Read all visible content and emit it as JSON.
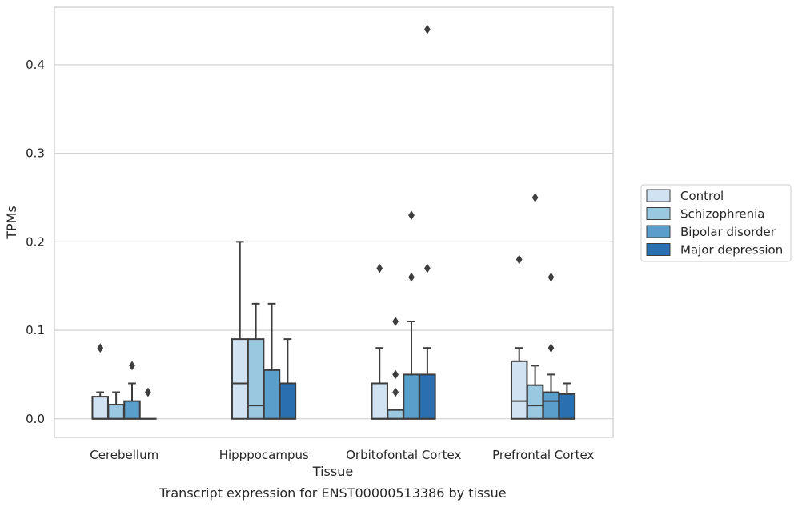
{
  "chart_data": {
    "type": "box",
    "title": "",
    "caption": "Transcript expression for ENST00000513386 by tissue",
    "xlabel": "Tissue",
    "ylabel": "TPMs",
    "ylim": [
      -0.021,
      0.465
    ],
    "yticks": [
      0.0,
      0.1,
      0.2,
      0.3,
      0.4
    ],
    "ytick_labels": [
      "0.0",
      "0.1",
      "0.2",
      "0.3",
      "0.4"
    ],
    "grid": "horizontal",
    "legend_position": "right",
    "categories": [
      "Cerebellum",
      "Hipppocampus",
      "Orbitofontal Cortex",
      "Prefrontal Cortex"
    ],
    "colors": {
      "Control": "#d1e2f2",
      "Schizophrenia": "#9ac8e0",
      "Bipolar disorder": "#5a9fcb",
      "Major depression": "#2a6faf"
    },
    "series": [
      {
        "name": "Control",
        "boxes": [
          {
            "q1": 0.0,
            "median": 0.0,
            "q3": 0.025,
            "whisker_low": 0.0,
            "whisker_high": 0.03,
            "outliers": [
              0.08
            ]
          },
          {
            "q1": 0.0,
            "median": 0.04,
            "q3": 0.09,
            "whisker_low": 0.0,
            "whisker_high": 0.2,
            "outliers": []
          },
          {
            "q1": 0.0,
            "median": 0.0,
            "q3": 0.04,
            "whisker_low": 0.0,
            "whisker_high": 0.08,
            "outliers": [
              0.17
            ]
          },
          {
            "q1": 0.0,
            "median": 0.02,
            "q3": 0.065,
            "whisker_low": 0.0,
            "whisker_high": 0.08,
            "outliers": [
              0.18
            ]
          }
        ]
      },
      {
        "name": "Schizophrenia",
        "boxes": [
          {
            "q1": 0.0,
            "median": 0.0,
            "q3": 0.016,
            "whisker_low": 0.0,
            "whisker_high": 0.03,
            "outliers": []
          },
          {
            "q1": 0.0,
            "median": 0.015,
            "q3": 0.09,
            "whisker_low": 0.0,
            "whisker_high": 0.13,
            "outliers": []
          },
          {
            "q1": 0.0,
            "median": 0.0,
            "q3": 0.01,
            "whisker_low": 0.0,
            "whisker_high": 0.01,
            "outliers": [
              0.03,
              0.05,
              0.11
            ]
          },
          {
            "q1": 0.0,
            "median": 0.015,
            "q3": 0.038,
            "whisker_low": 0.0,
            "whisker_high": 0.06,
            "outliers": [
              0.25
            ]
          }
        ]
      },
      {
        "name": "Bipolar disorder",
        "boxes": [
          {
            "q1": 0.0,
            "median": 0.0,
            "q3": 0.02,
            "whisker_low": 0.0,
            "whisker_high": 0.04,
            "outliers": [
              0.06
            ]
          },
          {
            "q1": 0.0,
            "median": 0.0,
            "q3": 0.055,
            "whisker_low": 0.0,
            "whisker_high": 0.13,
            "outliers": []
          },
          {
            "q1": 0.0,
            "median": 0.0,
            "q3": 0.05,
            "whisker_low": 0.0,
            "whisker_high": 0.11,
            "outliers": [
              0.16,
              0.23
            ]
          },
          {
            "q1": 0.0,
            "median": 0.02,
            "q3": 0.03,
            "whisker_low": 0.0,
            "whisker_high": 0.05,
            "outliers": [
              0.08,
              0.16
            ]
          }
        ]
      },
      {
        "name": "Major depression",
        "boxes": [
          {
            "q1": 0.0,
            "median": 0.0,
            "q3": 0.0,
            "whisker_low": 0.0,
            "whisker_high": 0.0,
            "outliers": [
              0.03
            ]
          },
          {
            "q1": 0.0,
            "median": 0.0,
            "q3": 0.04,
            "whisker_low": 0.0,
            "whisker_high": 0.09,
            "outliers": []
          },
          {
            "q1": 0.0,
            "median": 0.0,
            "q3": 0.05,
            "whisker_low": 0.0,
            "whisker_high": 0.08,
            "outliers": [
              0.17,
              0.44
            ]
          },
          {
            "q1": 0.0,
            "median": 0.0,
            "q3": 0.028,
            "whisker_low": 0.0,
            "whisker_high": 0.04,
            "outliers": []
          }
        ]
      }
    ]
  }
}
